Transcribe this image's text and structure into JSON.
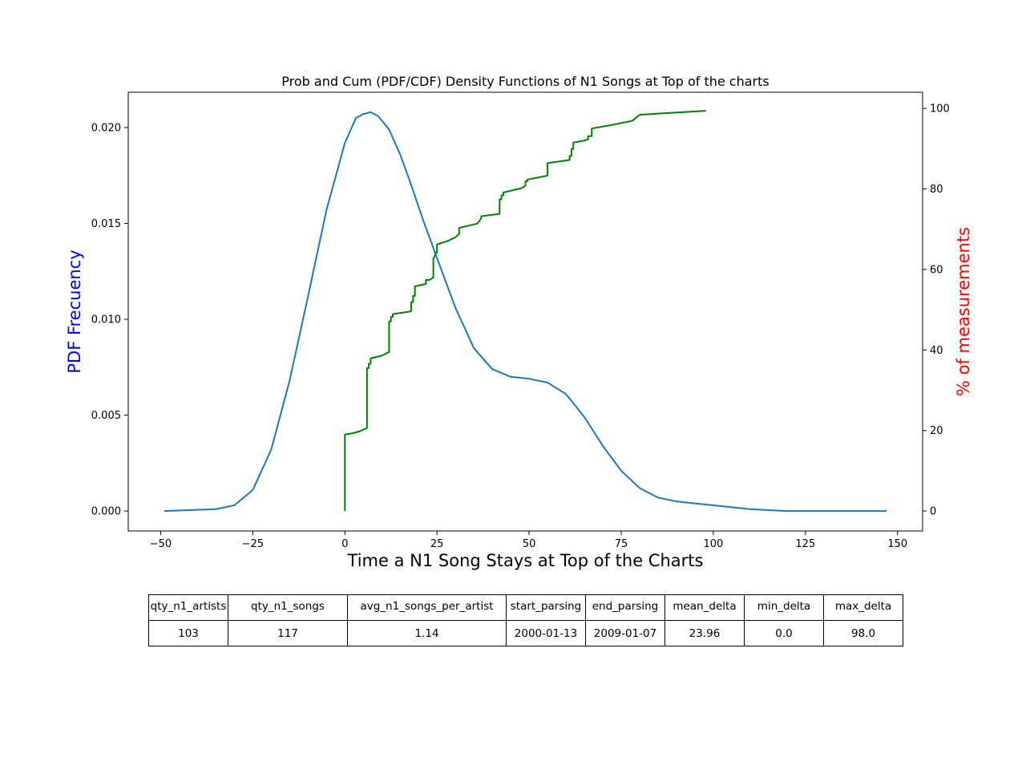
{
  "chart_data": {
    "type": "line",
    "title": "Prob and Cum (PDF/CDF) Density Functions of N1 Songs at Top of the charts",
    "xlabel": "Time a N1 Song Stays at Top of the Charts",
    "ylabel": "PDF Frecuency",
    "y2label": "% of measurements",
    "xlim": [
      -58.8,
      156.8
    ],
    "ylim": [
      -0.00104,
      0.02184
    ],
    "y2lim": [
      -4.95,
      104.0
    ],
    "xticks": [
      "−50",
      "−25",
      "0",
      "25",
      "50",
      "75",
      "100",
      "125",
      "150"
    ],
    "yticks": [
      "0.000",
      "0.005",
      "0.010",
      "0.015",
      "0.020"
    ],
    "y2ticks": [
      "0",
      "20",
      "40",
      "60",
      "80",
      "100"
    ],
    "grid": false,
    "colors": {
      "pdf": "#1f77b4",
      "cdf": "#008000",
      "ylabel": "#0000ff",
      "y2label": "#ff0000"
    },
    "series": [
      {
        "key": "pdf",
        "axis": "left",
        "x": [
          -49,
          -35,
          -30,
          -25,
          -20,
          -15,
          -10,
          -5,
          0,
          3,
          5,
          7,
          9,
          12,
          15,
          18,
          21,
          25,
          30,
          35,
          40,
          45,
          50,
          55,
          60,
          65,
          70,
          75,
          80,
          85,
          90,
          95,
          100,
          105,
          110,
          115,
          120,
          125,
          130,
          140,
          147
        ],
        "y": [
          0.0,
          0.0001,
          0.0003,
          0.0011,
          0.0032,
          0.0068,
          0.0112,
          0.0157,
          0.0192,
          0.0205,
          0.0207,
          0.0208,
          0.0206,
          0.0199,
          0.0186,
          0.017,
          0.0153,
          0.0132,
          0.0106,
          0.0085,
          0.0074,
          0.007,
          0.0069,
          0.0067,
          0.0061,
          0.0049,
          0.0034,
          0.0021,
          0.0012,
          0.0007,
          0.0005,
          0.0004,
          0.0003,
          0.0002,
          0.0001,
          5e-05,
          0.0,
          0.0,
          0.0,
          0.0,
          0.0
        ]
      },
      {
        "key": "cdf",
        "axis": "right",
        "x": [
          0,
          0,
          2,
          4,
          6,
          6,
          6.5,
          6.5,
          7,
          7,
          10,
          12,
          12,
          12.5,
          12.5,
          13,
          13,
          18,
          18,
          18.5,
          18.5,
          19,
          19,
          22,
          22,
          23,
          24,
          24,
          24.5,
          24.5,
          25,
          25,
          28,
          30,
          31,
          31,
          36,
          37,
          37,
          42,
          42,
          42.5,
          42.5,
          43,
          43,
          48,
          49,
          49,
          49.5,
          49.5,
          55,
          55,
          61,
          61,
          61.5,
          61.5,
          62,
          62,
          65,
          66,
          66,
          67,
          67,
          72,
          78,
          80,
          85,
          98
        ],
        "y": [
          0,
          19,
          19.3,
          19.8,
          20.6,
          35.5,
          35.5,
          36.6,
          36.6,
          37.9,
          38.6,
          39.5,
          47.1,
          47.1,
          48.2,
          48.2,
          48.9,
          49.6,
          51.9,
          51.9,
          53.4,
          53.4,
          55.8,
          56.4,
          57.4,
          57.4,
          58.0,
          62.6,
          63.5,
          64.2,
          64.2,
          66.2,
          67.1,
          68.0,
          68.8,
          70.3,
          71.4,
          72.7,
          73.2,
          73.8,
          77.4,
          77.4,
          78.4,
          78.4,
          79.1,
          80.2,
          80.8,
          81.9,
          81.9,
          82.3,
          83.3,
          86.4,
          87.2,
          88.2,
          88.2,
          89.9,
          89.9,
          91.5,
          92.0,
          92.3,
          93.1,
          93.1,
          95.0,
          95.8,
          96.9,
          98.4,
          98.7,
          99.4
        ]
      }
    ]
  },
  "table": {
    "headers": [
      "qty_n1_artists",
      "qty_n1_songs",
      "avg_n1_songs_per_artist",
      "start_parsing",
      "end_parsing",
      "mean_delta",
      "min_delta",
      "max_delta"
    ],
    "values": [
      "103",
      "117",
      "1.14",
      "2000-01-13",
      "2009-01-07",
      "23.96",
      "0.0",
      "98.0"
    ]
  }
}
